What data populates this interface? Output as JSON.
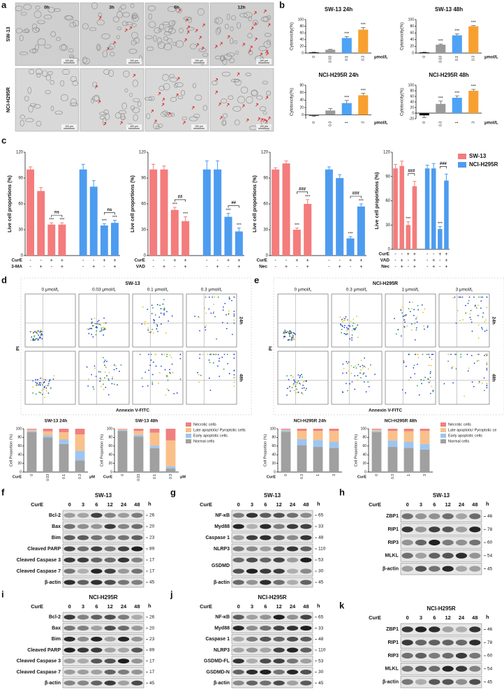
{
  "chart_data": [
    {
      "type": "bar",
      "title": "SW-13 24h",
      "y_label": "Cytotoxicity(%)",
      "categories": [
        "0",
        "0.03",
        "0.1",
        "0.3"
      ],
      "x_unit": "μmol/L",
      "values": [
        2,
        10,
        45,
        70
      ],
      "errors": [
        1,
        1,
        4,
        6
      ],
      "colors": [
        "#111111",
        "#9a9a9a",
        "#4da3f5",
        "#f7a030"
      ],
      "annotations": [
        null,
        null,
        "***",
        "***"
      ],
      "ylim": [
        0,
        100
      ],
      "yticks": [
        0,
        20,
        40,
        60,
        80,
        100
      ]
    },
    {
      "type": "bar",
      "title": "SW-13 48h",
      "y_label": "Cytotoxicity(%)",
      "categories": [
        "0",
        "0.03",
        "0.1",
        "0.3"
      ],
      "x_unit": "μmol/L",
      "values": [
        2,
        25,
        53,
        80
      ],
      "errors": [
        1,
        2,
        4,
        2
      ],
      "colors": [
        "#111111",
        "#9a9a9a",
        "#4da3f5",
        "#f7a030"
      ],
      "annotations": [
        null,
        "***",
        "***",
        "***"
      ],
      "ylim": [
        0,
        100
      ],
      "yticks": [
        0,
        20,
        40,
        60,
        80,
        100
      ]
    },
    {
      "type": "bar",
      "title": "NCI-H295R 24h",
      "y_label": "Cytotoxicity(%)",
      "categories": [
        "0",
        "0.3",
        "1",
        "3"
      ],
      "x_unit": "μmol/L",
      "values": [
        -2,
        12,
        32,
        53
      ],
      "errors": [
        2,
        5,
        7,
        5
      ],
      "colors": [
        "#111111",
        "#9a9a9a",
        "#4da3f5",
        "#f7a030"
      ],
      "annotations": [
        null,
        null,
        "***",
        "***"
      ],
      "ylim": [
        -10,
        80
      ],
      "yticks": [
        0,
        20,
        40,
        60,
        80
      ]
    },
    {
      "type": "bar",
      "title": "NCI-H295R 48h",
      "y_label": "Cytotoxicity(%)",
      "categories": [
        "0",
        "0.3",
        "1",
        "3"
      ],
      "x_unit": "μmol/L",
      "values": [
        -8,
        33,
        55,
        80
      ],
      "errors": [
        8,
        10,
        7,
        5
      ],
      "colors": [
        "#111111",
        "#9a9a9a",
        "#4da3f5",
        "#f7a030"
      ],
      "annotations": [
        null,
        "***",
        "***",
        "***"
      ],
      "ylim": [
        -20,
        100
      ],
      "yticks": [
        -20,
        0,
        20,
        40,
        60,
        80,
        100
      ]
    },
    {
      "type": "grouped_bar",
      "y_label": "Live cell proportions (%)",
      "ylim": [
        0,
        120
      ],
      "yticks": [
        0,
        30,
        60,
        90,
        120
      ],
      "series": [
        {
          "color": "#f47c7c",
          "values": [
            100,
            75,
            36,
            36
          ],
          "errors": [
            3,
            4,
            2,
            2
          ],
          "annotations": [
            null,
            null,
            "***",
            "***"
          ],
          "comparison": "ns"
        },
        {
          "color": "#4d9cf0",
          "values": [
            100,
            80,
            35,
            38
          ],
          "errors": [
            6,
            7,
            2,
            3
          ],
          "annotations": [
            null,
            null,
            "***",
            "***"
          ],
          "comparison": "ns"
        }
      ],
      "treatments": [
        {
          "name": "CurE",
          "signs": [
            "-",
            "-",
            "+",
            "+",
            "-",
            "-",
            "+",
            "+"
          ]
        },
        {
          "name": "3-MA",
          "signs": [
            "-",
            "+",
            "-",
            "+",
            "-",
            "+",
            "-",
            "+"
          ]
        }
      ]
    },
    {
      "type": "grouped_bar",
      "y_label": "Live cell proportions (%)",
      "ylim": [
        0,
        120
      ],
      "yticks": [
        0,
        30,
        60,
        90,
        120
      ],
      "series": [
        {
          "color": "#f47c7c",
          "values": [
            100,
            100,
            53,
            40
          ],
          "errors": [
            6,
            4,
            3,
            5
          ],
          "annotations": [
            null,
            null,
            "***",
            "***"
          ],
          "comparison": "##"
        },
        {
          "color": "#4d9cf0",
          "values": [
            100,
            100,
            45,
            28
          ],
          "errors": [
            10,
            10,
            4,
            4
          ],
          "annotations": [
            null,
            null,
            "***",
            "***"
          ],
          "comparison": "##"
        }
      ],
      "treatments": [
        {
          "name": "CurE",
          "signs": [
            "-",
            "-",
            "+",
            "+",
            "-",
            "-",
            "+",
            "+"
          ]
        },
        {
          "name": "VAD",
          "signs": [
            "-",
            "+",
            "-",
            "+",
            "-",
            "+",
            "-",
            "+"
          ]
        }
      ]
    },
    {
      "type": "grouped_bar",
      "y_label": "Live cell proportions (%)",
      "ylim": [
        0,
        120
      ],
      "yticks": [
        0,
        30,
        60,
        90,
        120
      ],
      "series": [
        {
          "color": "#f47c7c",
          "values": [
            100,
            107,
            30,
            60
          ],
          "errors": [
            2,
            3,
            2,
            5
          ],
          "annotations": [
            null,
            null,
            "***",
            "***"
          ],
          "comparison": "###"
        },
        {
          "color": "#4d9cf0",
          "values": [
            100,
            90,
            20,
            57
          ],
          "errors": [
            3,
            4,
            2,
            3
          ],
          "annotations": [
            null,
            null,
            "***",
            "***"
          ],
          "comparison": "###"
        }
      ],
      "treatments": [
        {
          "name": "CurE",
          "signs": [
            "-",
            "-",
            "+",
            "+",
            "-",
            "-",
            "+",
            "+"
          ]
        },
        {
          "name": "Nec",
          "signs": [
            "-",
            "+",
            "-",
            "+",
            "-",
            "+",
            "-",
            "+"
          ]
        }
      ]
    },
    {
      "type": "grouped_bar",
      "y_label": "Live cell proportions (%)",
      "ylim": [
        0,
        120
      ],
      "yticks": [
        0,
        30,
        60,
        90,
        120
      ],
      "legend": "right",
      "series": [
        {
          "name": "SW-13",
          "color": "#f47c7c",
          "values": [
            100,
            103,
            30,
            78
          ],
          "errors": [
            5,
            6,
            4,
            6
          ],
          "annotations": [
            null,
            null,
            "***",
            null
          ],
          "comparison": "###"
        },
        {
          "name": "NCI-H295R",
          "color": "#4d9cf0",
          "values": [
            100,
            100,
            25,
            85
          ],
          "errors": [
            4,
            6,
            3,
            8
          ],
          "annotations": [
            null,
            null,
            "***",
            null
          ],
          "comparison": "###"
        }
      ],
      "treatments": [
        {
          "name": "CurE",
          "signs": [
            "-",
            "-",
            "+",
            "+",
            "-",
            "-",
            "+",
            "+"
          ]
        },
        {
          "name": "VAD",
          "signs": [
            "-",
            "+",
            "-",
            "+",
            "-",
            "+",
            "-",
            "+"
          ]
        },
        {
          "name": "Nec",
          "signs": [
            "-",
            "+",
            "-",
            "+",
            "-",
            "+",
            "-",
            "+"
          ]
        }
      ]
    },
    {
      "type": "stacked_bar",
      "title": "SW-13 24h",
      "y_label": "Cell Proportion (%)",
      "x_label": "CurE",
      "categories": [
        "0",
        "0.03",
        "0.1",
        "0.3"
      ],
      "x_unit": "μM",
      "ylim": [
        0,
        100
      ],
      "yticks": [
        0,
        20,
        40,
        60,
        80,
        100
      ],
      "series": [
        {
          "color": "#f08080",
          "values": [
            2,
            6,
            8,
            13
          ]
        },
        {
          "color": "#f9c08a",
          "values": [
            3,
            9,
            17,
            38
          ]
        },
        {
          "color": "#9ec5f0",
          "values": [
            3,
            5,
            10,
            22
          ]
        },
        {
          "color": "#a0a0a0",
          "values": [
            92,
            80,
            65,
            27
          ]
        }
      ]
    },
    {
      "type": "stacked_bar",
      "title": "SW-13 48h",
      "y_label": "Cell Proportion (%)",
      "x_label": "CurE",
      "categories": [
        "0",
        "0.03",
        "0.1",
        "0.3"
      ],
      "x_unit": "μM",
      "ylim": [
        0,
        100
      ],
      "yticks": [
        0,
        20,
        40,
        60,
        80,
        100
      ],
      "legend": "right",
      "series": [
        {
          "name": "Necrotic cells",
          "color": "#f08080",
          "values": [
            1,
            5,
            9,
            27
          ]
        },
        {
          "name": "Late apoptotic/ Pyroptotic cells",
          "color": "#f9c08a",
          "values": [
            2,
            9,
            30,
            60
          ]
        },
        {
          "name": "Early apoptotic cells",
          "color": "#9ec5f0",
          "values": [
            2,
            4,
            6,
            5
          ]
        },
        {
          "name": "Normal cells",
          "color": "#a0a0a0",
          "values": [
            95,
            82,
            55,
            8
          ]
        }
      ]
    },
    {
      "type": "stacked_bar",
      "title": "NCI-H295R 24h",
      "y_label": "Cell Proportion (%)",
      "x_label": "CurE",
      "categories": [
        "0",
        "0.3",
        "1",
        "3"
      ],
      "ylim": [
        0,
        100
      ],
      "yticks": [
        0,
        20,
        40,
        60,
        80,
        100
      ],
      "series": [
        {
          "color": "#f08080",
          "values": [
            2,
            5,
            5,
            5
          ]
        },
        {
          "color": "#f9c08a",
          "values": [
            2,
            19,
            21,
            25
          ]
        },
        {
          "color": "#9ec5f0",
          "values": [
            3,
            14,
            16,
            14
          ]
        },
        {
          "color": "#a0a0a0",
          "values": [
            93,
            62,
            58,
            56
          ]
        }
      ]
    },
    {
      "type": "stacked_bar",
      "title": "NCI-H295R 48h",
      "y_label": "Cell Proportion (%)",
      "x_label": "CurE",
      "categories": [
        "0",
        "0.3",
        "1",
        "3"
      ],
      "ylim": [
        0,
        100
      ],
      "yticks": [
        0,
        20,
        40,
        60,
        80,
        100
      ],
      "legend": "right",
      "series": [
        {
          "name": "Necrotic cells",
          "color": "#f08080",
          "values": [
            2,
            5,
            6,
            5
          ]
        },
        {
          "name": "Late apoptotic/ Pyroptotic ce",
          "color": "#f9c08a",
          "values": [
            3,
            22,
            24,
            30
          ]
        },
        {
          "name": "Early apoptotic cells",
          "color": "#9ec5f0",
          "values": [
            3,
            15,
            14,
            13
          ]
        },
        {
          "name": "Normal cells",
          "color": "#a0a0a0",
          "values": [
            92,
            58,
            56,
            52
          ]
        }
      ]
    }
  ],
  "panels": {
    "a": {
      "letter": "a",
      "times": [
        "0h",
        "3h",
        "6h",
        "12h"
      ],
      "cell_lines": [
        "SW-13",
        "NCI-H295R"
      ],
      "scale_bar": "100 μm"
    },
    "b": {
      "letter": "b"
    },
    "c": {
      "letter": "c"
    },
    "d": {
      "letter": "d",
      "title": "SW-13",
      "doses": [
        "0 μmol/L",
        "0.03 μmol/L",
        "0.1 μmol/L",
        "0.3 μmol/L"
      ],
      "times": [
        "24h",
        "48h"
      ],
      "y_axis": "PI",
      "x_axis": "Annexin V-FITC"
    },
    "e": {
      "letter": "e",
      "title": "NCI-H295R",
      "doses": [
        "0 μmol/L",
        "0.3 μmol/L",
        "1 μmol/L",
        "3 μmol/L"
      ],
      "times": [
        "24h",
        "48h"
      ],
      "y_axis": "PI",
      "x_axis": "Annexin V-FITC"
    },
    "f": {
      "letter": "f",
      "title": "SW-13",
      "treatment": "CurE",
      "lanes": [
        "0",
        "3",
        "6",
        "12",
        "24",
        "48"
      ],
      "lane_unit": "h",
      "proteins": [
        {
          "name": "Bcl-2",
          "kda": [
            26
          ]
        },
        {
          "name": "Bax",
          "kda": [
            20
          ]
        },
        {
          "name": "Bim",
          "kda": [
            23
          ]
        },
        {
          "name": "Cleaved PARP",
          "kda": [
            89
          ]
        },
        {
          "name": "Cleaved Caspase 3",
          "kda": [
            17
          ]
        },
        {
          "name": "Cleaved Caspase 7",
          "kda": [
            17
          ]
        },
        {
          "name": "β-actin",
          "kda": [
            45
          ]
        }
      ]
    },
    "g": {
      "letter": "g",
      "title": "SW-13",
      "treatment": "CurE",
      "lanes": [
        "0",
        "3",
        "6",
        "12",
        "24",
        "48"
      ],
      "lane_unit": "h",
      "proteins": [
        {
          "name": "NF-κB",
          "kda": [
            65
          ]
        },
        {
          "name": "Myd88",
          "kda": [
            33
          ]
        },
        {
          "name": "Caspase 1",
          "kda": [
            48
          ]
        },
        {
          "name": "NLRP3",
          "kda": [
            110
          ]
        },
        {
          "name": "GSDMD",
          "kda": [
            53,
            30
          ]
        },
        {
          "name": "β-actin",
          "kda": [
            45
          ]
        }
      ]
    },
    "h": {
      "letter": "h",
      "title": "SW-13",
      "treatment": "CurE",
      "lanes": [
        "0",
        "3",
        "6",
        "12",
        "24",
        "48"
      ],
      "lane_unit": "h",
      "proteins": [
        {
          "name": "ZBP1",
          "kda": [
            46
          ]
        },
        {
          "name": "RIP1",
          "kda": [
            78
          ]
        },
        {
          "name": "RIP3",
          "kda": [
            60
          ]
        },
        {
          "name": "MLKL",
          "kda": [
            54
          ]
        },
        {
          "name": "β-actin",
          "kda": [
            45
          ]
        }
      ]
    },
    "i": {
      "letter": "i",
      "title": "NCI-H295R",
      "treatment": "CurE",
      "lanes": [
        "0",
        "3",
        "6",
        "12",
        "24",
        "48"
      ],
      "lane_unit": "h",
      "proteins": [
        {
          "name": "Bcl-2",
          "kda": [
            26
          ]
        },
        {
          "name": "Bax",
          "kda": [
            20
          ]
        },
        {
          "name": "Bim",
          "kda": [
            23
          ]
        },
        {
          "name": "Cleaved PARP",
          "kda": [
            89
          ]
        },
        {
          "name": "Cleaved Caspase 3",
          "kda": [
            17
          ]
        },
        {
          "name": "Cleaved Caspase 7",
          "kda": [
            17
          ]
        },
        {
          "name": "β-actin",
          "kda": [
            45
          ]
        }
      ]
    },
    "j": {
      "letter": "j",
      "title": "NCI-H295R",
      "treatment": "CurE",
      "lanes": [
        "0",
        "3",
        "6",
        "12",
        "24",
        "48"
      ],
      "lane_unit": "h",
      "proteins": [
        {
          "name": "NF-κB",
          "kda": [
            65
          ]
        },
        {
          "name": "Myd88",
          "kda": [
            33
          ]
        },
        {
          "name": "Caspase 1",
          "kda": [
            48
          ]
        },
        {
          "name": "NLRP3",
          "kda": [
            110
          ]
        },
        {
          "name": "GSDMD-FL",
          "kda": [
            53
          ]
        },
        {
          "name": "GSDMD-N",
          "kda": [
            30
          ]
        },
        {
          "name": "β-actin",
          "kda": [
            45
          ]
        }
      ]
    },
    "k": {
      "letter": "k",
      "title": "NCI-H295R",
      "treatment": "CurE",
      "lanes": [
        "0",
        "3",
        "6",
        "12",
        "24",
        "48"
      ],
      "lane_unit": "h",
      "proteins": [
        {
          "name": "ZBP1",
          "kda": [
            46
          ]
        },
        {
          "name": "RIP1",
          "kda": [
            78
          ]
        },
        {
          "name": "RIP3",
          "kda": [
            60
          ]
        },
        {
          "name": "MLKL",
          "kda": [
            54
          ]
        },
        {
          "name": "β-actin",
          "kda": [
            45
          ]
        }
      ]
    }
  }
}
